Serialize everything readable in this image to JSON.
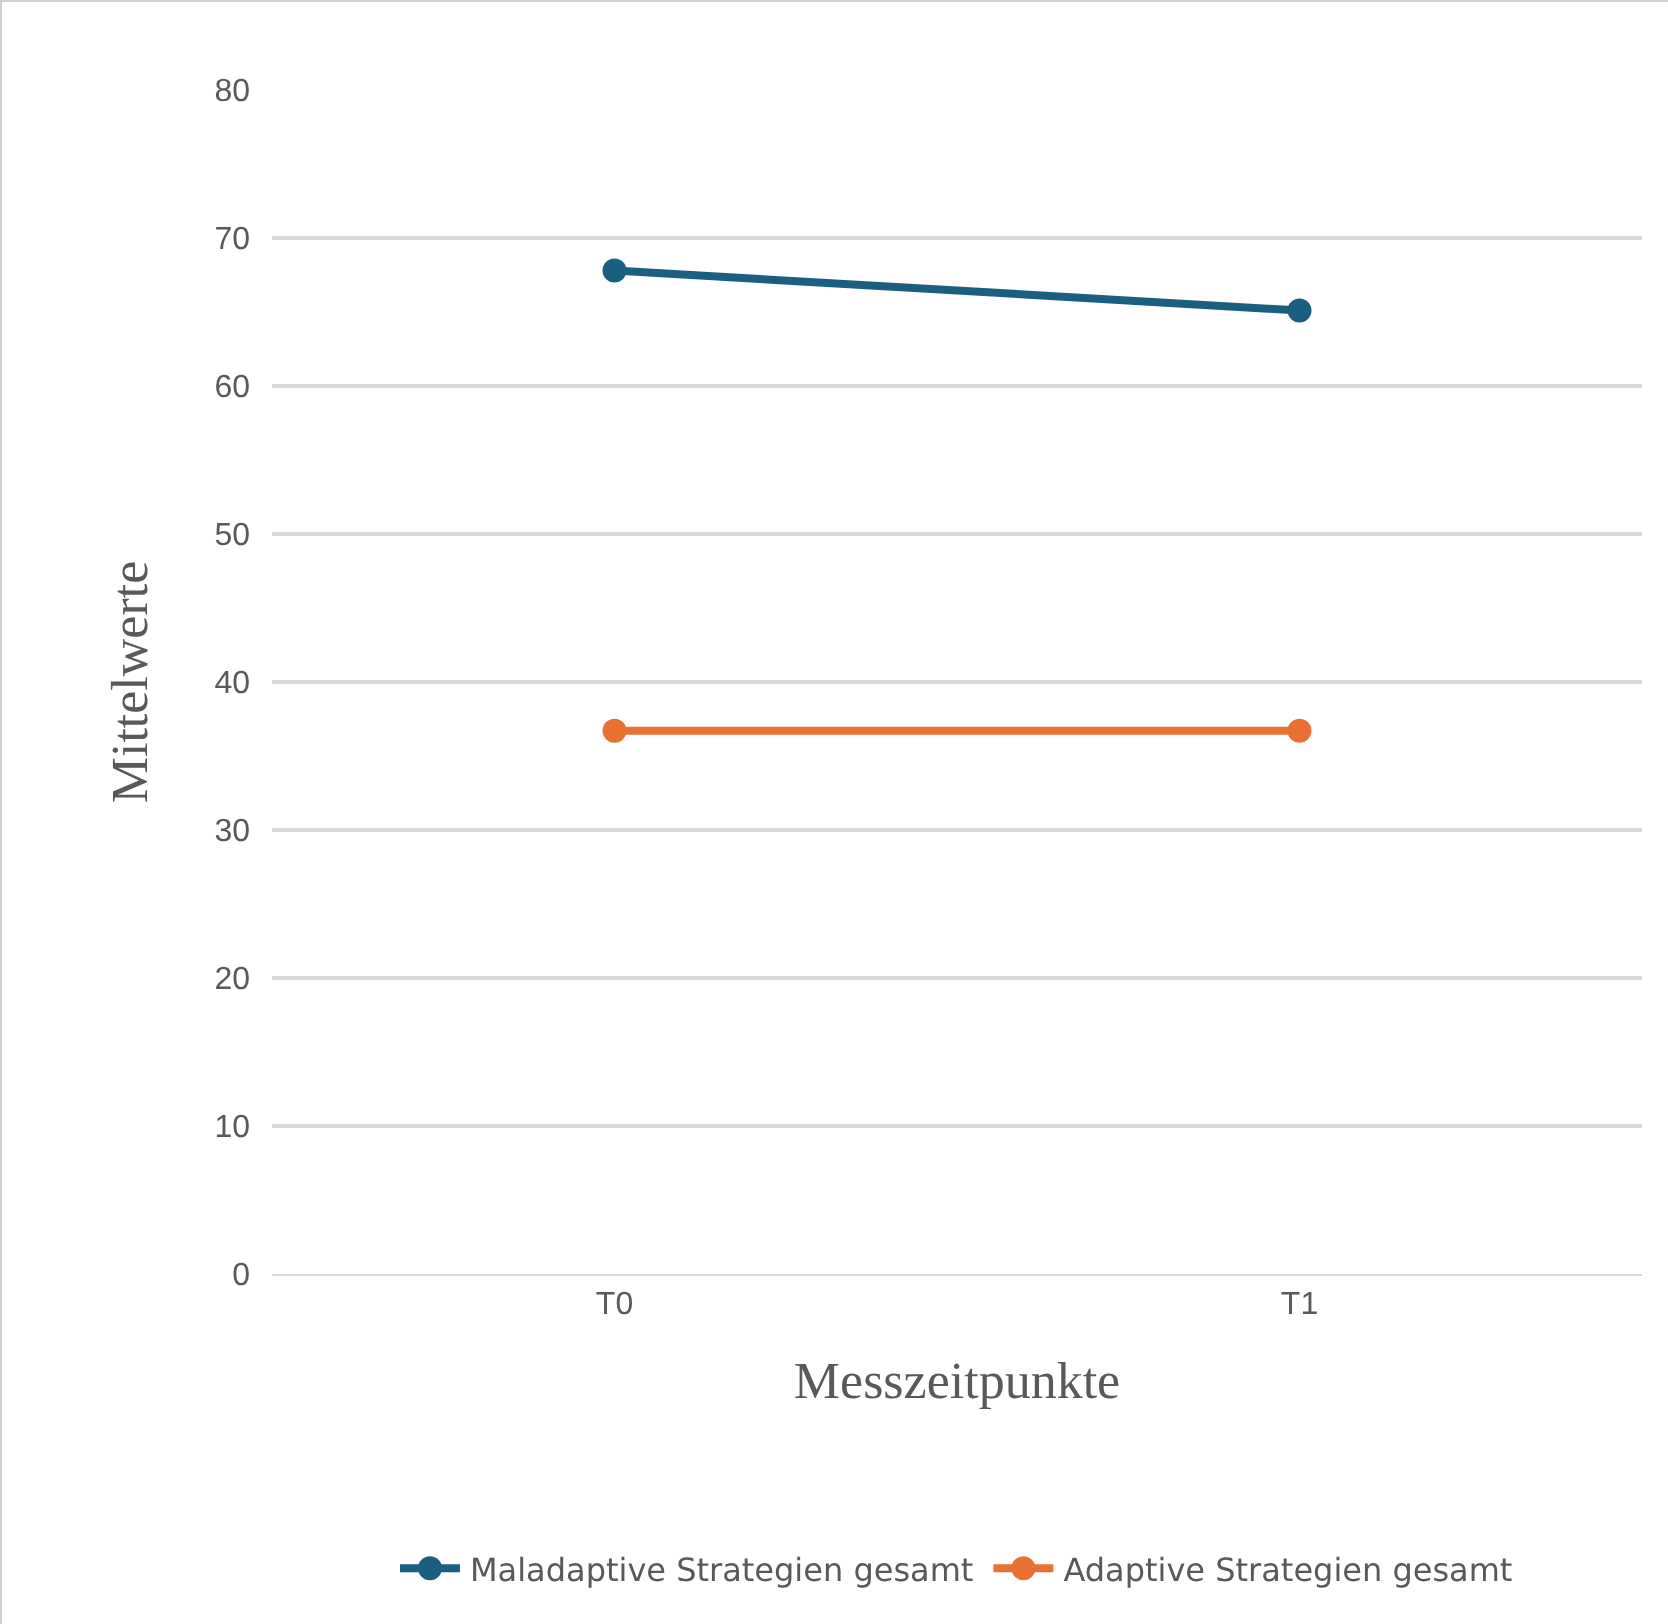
{
  "chart_data": {
    "type": "line",
    "xlabel": "Messzeitpunkte",
    "ylabel": "Mittelwerte",
    "categories": [
      "T0",
      "T1"
    ],
    "series": [
      {
        "name": "Maladaptive Strategien gesamt",
        "color": "#1a5e80",
        "values": [
          67.8,
          65.1
        ]
      },
      {
        "name": "Adaptive Strategien gesamt",
        "color": "#e97132",
        "values": [
          36.7,
          36.7
        ]
      }
    ],
    "ylim": [
      0,
      80
    ],
    "yticks": [
      0,
      10,
      20,
      30,
      40,
      50,
      60,
      70,
      80
    ],
    "grid": "y",
    "legend": "bottom",
    "marker": "circle",
    "line_style": "solid"
  }
}
